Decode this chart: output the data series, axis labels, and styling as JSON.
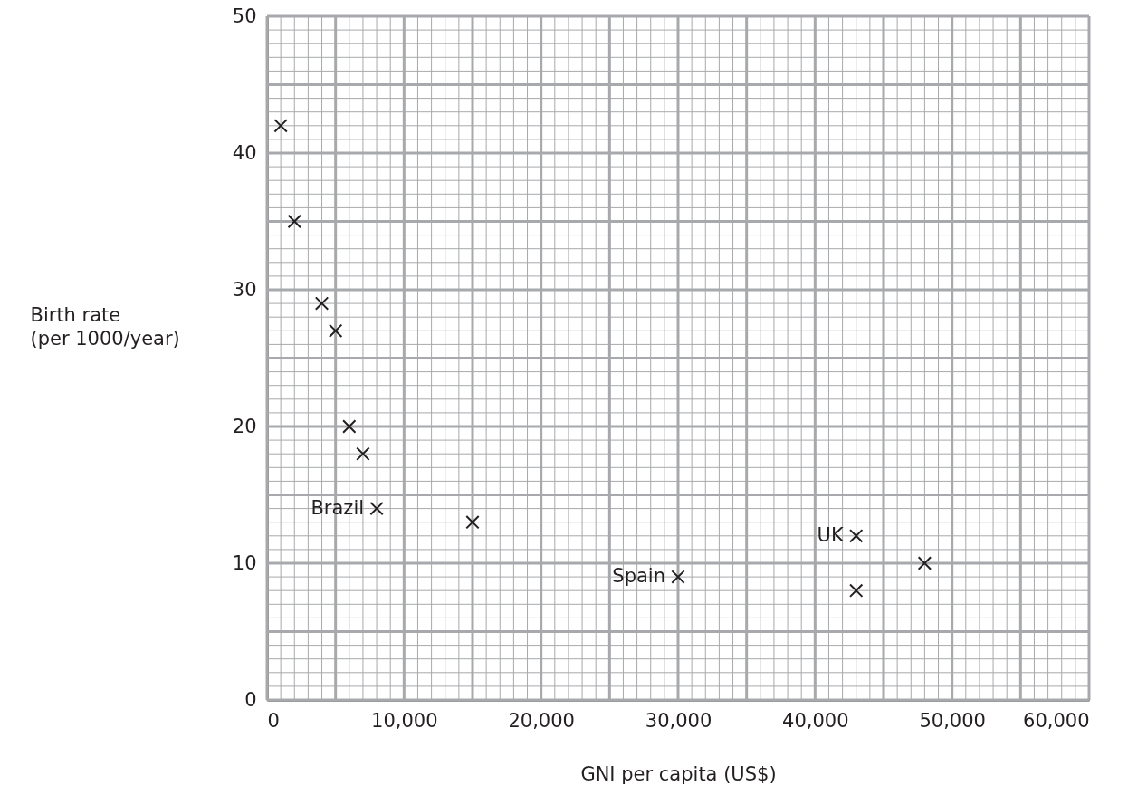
{
  "chart_data": {
    "type": "scatter",
    "xlabel": "GNI per capita (US$)",
    "ylabel": "Birth rate\n(per 1000/year)",
    "x": [
      1000,
      2000,
      4000,
      5000,
      6000,
      7000,
      8000,
      15000,
      30000,
      43000,
      43000,
      48000
    ],
    "values": [
      42,
      35,
      29,
      27,
      20,
      18,
      14,
      13,
      9,
      12,
      8,
      10
    ],
    "color": "#231f20",
    "marker": "cross",
    "grid": true,
    "xlim": [
      0,
      60000
    ],
    "ylim": [
      0,
      50
    ],
    "xticks": [
      0,
      {
        "value": 1000,
        "label": null
      },
      {
        "value": 2000,
        "label": null
      },
      {
        "value": 3000,
        "label": null
      },
      {
        "value": 4000,
        "label": null
      },
      {
        "value": 5000,
        "label": null
      },
      {
        "value": 6000,
        "label": null
      },
      {
        "value": 7000,
        "label": null
      },
      {
        "value": 8000,
        "label": null
      },
      {
        "value": 9000,
        "label": null
      },
      {
        "value": 10000,
        "label": "10,000"
      },
      {
        "value": 11000,
        "label": null
      },
      {
        "value": 12000,
        "label": null
      },
      {
        "value": 13000,
        "label": null
      },
      {
        "value": 14000,
        "label": null
      },
      {
        "value": 15000,
        "label": null
      },
      {
        "value": 16000,
        "label": null
      },
      {
        "value": 17000,
        "label": null
      },
      {
        "value": 18000,
        "label": null
      },
      {
        "value": 19000,
        "label": null
      },
      {
        "value": 20000,
        "label": "20,000"
      },
      {
        "value": 21000,
        "label": null
      },
      {
        "value": 22000,
        "label": null
      },
      {
        "value": 23000,
        "label": null
      },
      {
        "value": 24000,
        "label": null
      },
      {
        "value": 25000,
        "label": null
      },
      {
        "value": 26000,
        "label": null
      },
      {
        "value": 27000,
        "label": null
      },
      {
        "value": 28000,
        "label": null
      },
      {
        "value": 29000,
        "label": null
      },
      {
        "value": 30000,
        "label": "30,000"
      },
      {
        "value": 31000,
        "label": null
      },
      {
        "value": 32000,
        "label": null
      },
      {
        "value": 33000,
        "label": null
      },
      {
        "value": 34000,
        "label": null
      },
      {
        "value": 35000,
        "label": null
      },
      {
        "value": 36000,
        "label": null
      },
      {
        "value": 37000,
        "label": null
      },
      {
        "value": 38000,
        "label": null
      },
      {
        "value": 39000,
        "label": null
      },
      {
        "value": 40000,
        "label": "40,000"
      },
      {
        "value": 41000,
        "label": null
      },
      {
        "value": 42000,
        "label": null
      },
      {
        "value": 43000,
        "label": null
      },
      {
        "value": 44000,
        "label": null
      },
      {
        "value": 45000,
        "label": null
      },
      {
        "value": 46000,
        "label": null
      },
      {
        "value": 47000,
        "label": null
      },
      {
        "value": 48000,
        "label": null
      },
      {
        "value": 49000,
        "label": null
      },
      {
        "value": 50000,
        "label": "50,000"
      },
      {
        "value": 51000,
        "label": null
      },
      {
        "value": 52000,
        "label": null
      },
      {
        "value": 53000,
        "label": null
      },
      {
        "value": 54000,
        "label": null
      },
      {
        "value": 55000,
        "label": null
      },
      {
        "value": 56000,
        "label": null
      },
      {
        "value": 57000,
        "label": null
      },
      {
        "value": 58000,
        "label": null
      },
      {
        "value": 59000,
        "label": null
      },
      {
        "value": 60000,
        "label": "60,000"
      }
    ],
    "yticks": [
      0,
      {
        "value": 1,
        "label": null
      },
      {
        "value": 2,
        "label": null
      },
      {
        "value": 3,
        "label": null
      },
      {
        "value": 4,
        "label": null
      },
      {
        "value": 5,
        "label": null
      },
      {
        "value": 6,
        "label": null
      },
      {
        "value": 7,
        "label": null
      },
      {
        "value": 8,
        "label": null
      },
      {
        "value": 9,
        "label": null
      },
      10,
      {
        "value": 11,
        "label": null
      },
      {
        "value": 12,
        "label": null
      },
      {
        "value": 13,
        "label": null
      },
      {
        "value": 14,
        "label": null
      },
      {
        "value": 15,
        "label": null
      },
      {
        "value": 16,
        "label": null
      },
      {
        "value": 17,
        "label": null
      },
      {
        "value": 18,
        "label": null
      },
      {
        "value": 19,
        "label": null
      },
      20,
      {
        "value": 21,
        "label": null
      },
      {
        "value": 22,
        "label": null
      },
      {
        "value": 23,
        "label": null
      },
      {
        "value": 24,
        "label": null
      },
      {
        "value": 25,
        "label": null
      },
      {
        "value": 26,
        "label": null
      },
      {
        "value": 27,
        "label": null
      },
      {
        "value": 28,
        "label": null
      },
      {
        "value": 29,
        "label": null
      },
      30,
      {
        "value": 31,
        "label": null
      },
      {
        "value": 32,
        "label": null
      },
      {
        "value": 33,
        "label": null
      },
      {
        "value": 34,
        "label": null
      },
      {
        "value": 35,
        "label": null
      },
      {
        "value": 36,
        "label": null
      },
      {
        "value": 37,
        "label": null
      },
      {
        "value": 38,
        "label": null
      },
      {
        "value": 39,
        "label": null
      },
      40,
      {
        "value": 41,
        "label": null
      },
      {
        "value": 42,
        "label": null
      },
      {
        "value": 43,
        "label": null
      },
      {
        "value": 44,
        "label": null
      },
      {
        "value": 45,
        "label": null
      },
      {
        "value": 46,
        "label": null
      },
      {
        "value": 47,
        "label": null
      },
      {
        "value": 48,
        "label": null
      },
      {
        "value": 49,
        "label": null
      },
      50
    ],
    "annotations": [
      {
        "text": "Brazil",
        "x": 8000,
        "y": 14
      },
      {
        "text": "Spain",
        "x": 30000,
        "y": 9
      },
      {
        "text": "UK",
        "x": 43000,
        "y": 12
      }
    ]
  }
}
